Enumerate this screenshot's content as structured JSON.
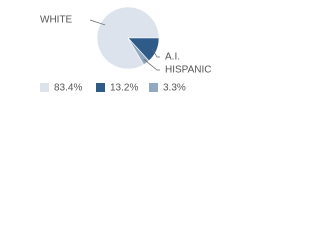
{
  "chart_data": {
    "type": "pie",
    "categories": [
      "WHITE",
      "A.I.",
      "HISPANIC"
    ],
    "values": [
      83.4,
      13.2,
      3.3
    ],
    "value_labels": [
      "83.4%",
      "13.2%",
      "3.3%"
    ],
    "colors": [
      "#dde3ed",
      "#2f5b88",
      "#91a9c0"
    ]
  }
}
